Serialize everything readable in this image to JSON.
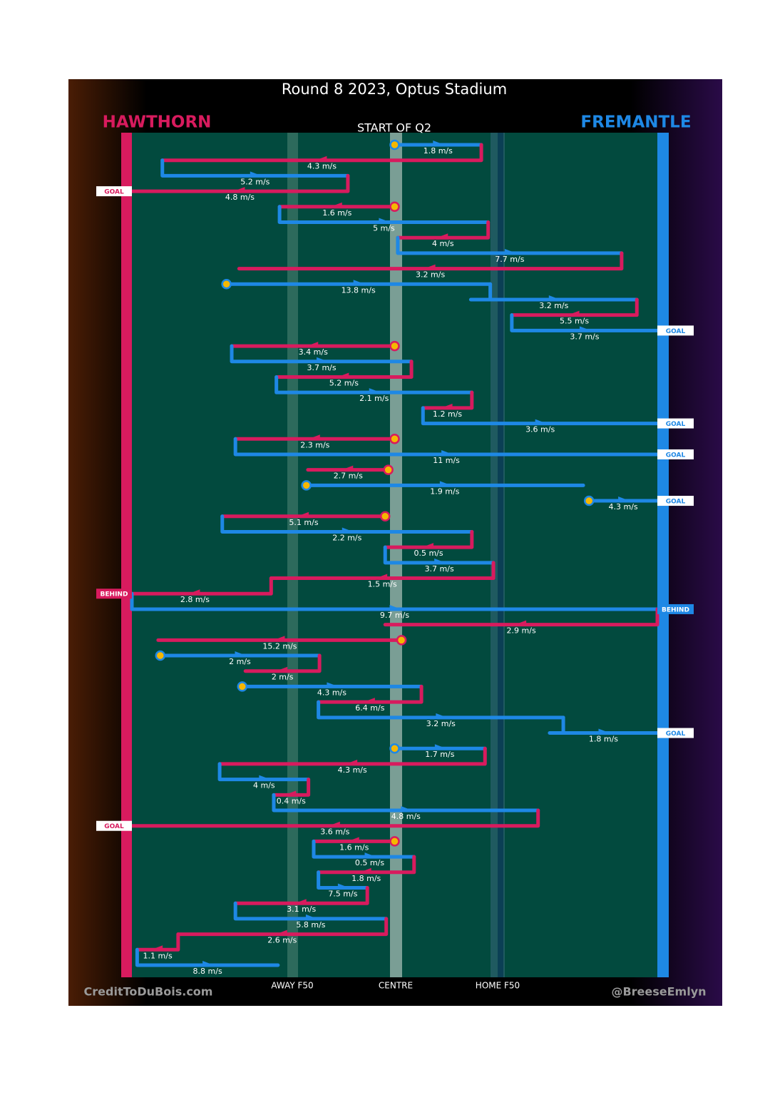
{
  "title": "Round 8 2023, Optus Stadium",
  "subtitle": "START OF Q2",
  "teams": [
    {
      "name": "HAWTHORN",
      "color": "#d81b5e"
    },
    {
      "name": "FREMANTLE",
      "color": "#1e88e5"
    }
  ],
  "field_lines": [
    "AWAY F50",
    "CENTRE",
    "HOME F50"
  ],
  "credit_left": "CreditToDuBois.com",
  "credit_right": "@BreeseEmlyn",
  "plays": [
    {
      "team": 1,
      "from": 50,
      "to": 66.5,
      "speed": "1.8 m/s",
      "restart": true
    },
    {
      "team": 0,
      "from": 66.5,
      "to": 5.8,
      "speed": "4.3 m/s"
    },
    {
      "team": 1,
      "from": 5.8,
      "to": 41.1,
      "speed": "5.2 m/s"
    },
    {
      "team": 0,
      "from": 41.1,
      "to": 0,
      "speed": "4.8 m/s",
      "result": "GOAL"
    },
    {
      "team": 0,
      "from": 50,
      "to": 28.1,
      "speed": "1.6 m/s",
      "restart": true
    },
    {
      "team": 1,
      "from": 28.1,
      "to": 67.8,
      "speed": "5 m/s"
    },
    {
      "team": 0,
      "from": 67.8,
      "to": 50.6,
      "speed": "4 m/s"
    },
    {
      "team": 1,
      "from": 50.6,
      "to": 93.2,
      "speed": "7.7 m/s"
    },
    {
      "team": 0,
      "from": 93.2,
      "to": 20.4,
      "speed": "3.2 m/s"
    },
    {
      "team": 1,
      "from": 18,
      "to": 68.2,
      "speed": "13.8 m/s",
      "restart": true
    },
    {
      "team": 1,
      "from": 64.5,
      "to": 96.1,
      "speed": "3.2 m/s"
    },
    {
      "team": 0,
      "from": 96.1,
      "to": 72.3,
      "speed": "5.5 m/s"
    },
    {
      "team": 1,
      "from": 72.3,
      "to": 100,
      "speed": "3.7 m/s",
      "result": "GOAL"
    },
    {
      "team": 0,
      "from": 50,
      "to": 19,
      "speed": "3.4 m/s",
      "restart": true
    },
    {
      "team": 1,
      "from": 19,
      "to": 53.2,
      "speed": "3.7 m/s"
    },
    {
      "team": 0,
      "from": 53.2,
      "to": 27.5,
      "speed": "5.2 m/s"
    },
    {
      "team": 1,
      "from": 27.5,
      "to": 64.7,
      "speed": "2.1 m/s"
    },
    {
      "team": 0,
      "from": 64.7,
      "to": 55.4,
      "speed": "1.2 m/s"
    },
    {
      "team": 1,
      "from": 55.4,
      "to": 100,
      "speed": "3.6 m/s",
      "result": "GOAL"
    },
    {
      "team": 0,
      "from": 50,
      "to": 19.7,
      "speed": "2.3 m/s",
      "restart": true
    },
    {
      "team": 1,
      "from": 19.7,
      "to": 100,
      "speed": "11 m/s",
      "result": "GOAL"
    },
    {
      "team": 0,
      "from": 48.8,
      "to": 33.5,
      "speed": "2.7 m/s",
      "restart": true
    },
    {
      "team": 1,
      "from": 33.2,
      "to": 85.9,
      "speed": "1.9 m/s",
      "restart": true
    },
    {
      "team": 1,
      "from": 87,
      "to": 100,
      "speed": "4.3 m/s",
      "result": "GOAL",
      "restart": true
    },
    {
      "team": 0,
      "from": 48.2,
      "to": 17.2,
      "speed": "5.1 m/s",
      "restart": true
    },
    {
      "team": 1,
      "from": 17.2,
      "to": 64.7,
      "speed": "2.2 m/s"
    },
    {
      "team": 0,
      "from": 64.7,
      "to": 48.2,
      "speed": "0.5 m/s"
    },
    {
      "team": 1,
      "from": 48.2,
      "to": 68.8,
      "speed": "3.7 m/s"
    },
    {
      "team": 0,
      "from": 68.8,
      "to": 26.5,
      "speed": "1.5 m/s"
    },
    {
      "team": 0,
      "from": 24,
      "to": 0,
      "speed": "2.8 m/s",
      "result": "BEHIND"
    },
    {
      "team": 1,
      "from": 0,
      "to": 100,
      "speed": "9.7 m/s",
      "result": "BEHIND"
    },
    {
      "team": 0,
      "from": 100,
      "to": 48.2,
      "speed": "2.9 m/s"
    },
    {
      "team": 0,
      "from": 51.3,
      "to": 5,
      "speed": "15.2 m/s",
      "restart": true
    },
    {
      "team": 1,
      "from": 5.4,
      "to": 35.7,
      "speed": "2 m/s",
      "restart": true
    },
    {
      "team": 0,
      "from": 35.7,
      "to": 21.6,
      "speed": "2 m/s"
    },
    {
      "team": 1,
      "from": 21,
      "to": 55.1,
      "speed": "4.3 m/s",
      "restart": true
    },
    {
      "team": 0,
      "from": 55.1,
      "to": 35.5,
      "speed": "6.4 m/s"
    },
    {
      "team": 1,
      "from": 35.5,
      "to": 82.1,
      "speed": "3.2 m/s"
    },
    {
      "team": 1,
      "from": 79.5,
      "to": 100,
      "speed": "1.8 m/s",
      "result": "GOAL"
    },
    {
      "team": 1,
      "from": 50,
      "to": 67.2,
      "speed": "1.7 m/s",
      "restart": true
    },
    {
      "team": 0,
      "from": 67.2,
      "to": 16.7,
      "speed": "4.3 m/s"
    },
    {
      "team": 1,
      "from": 16.7,
      "to": 33.6,
      "speed": "4 m/s"
    },
    {
      "team": 0,
      "from": 33.6,
      "to": 27,
      "speed": "0.4 m/s"
    },
    {
      "team": 1,
      "from": 27,
      "to": 77.3,
      "speed": "4.8 m/s"
    },
    {
      "team": 0,
      "from": 77.3,
      "to": 0,
      "speed": "3.6 m/s",
      "result": "GOAL"
    },
    {
      "team": 0,
      "from": 50,
      "to": 34.6,
      "speed": "1.6 m/s",
      "restart": true
    },
    {
      "team": 1,
      "from": 36.8,
      "to": 53.7,
      "speed": "0.5 m/s"
    },
    {
      "team": 0,
      "from": 53.7,
      "to": 35.5,
      "speed": "1.8 m/s"
    },
    {
      "team": 1,
      "from": 35.5,
      "to": 44.8,
      "speed": "7.5 m/s"
    },
    {
      "team": 0,
      "from": 44.8,
      "to": 19.7,
      "speed": "3.1 m/s"
    },
    {
      "team": 1,
      "from": 19.7,
      "to": 48.4,
      "speed": "5.8 m/s"
    },
    {
      "team": 0,
      "from": 48.4,
      "to": 8.8,
      "speed": "2.6 m/s"
    },
    {
      "team": 0,
      "from": 8.8,
      "to": 1,
      "speed": "1.1 m/s"
    },
    {
      "team": 1,
      "from": 1,
      "to": 27.8,
      "speed": "8.8 m/s"
    }
  ]
}
